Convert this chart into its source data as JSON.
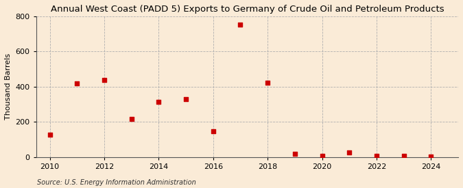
{
  "title": "Annual West Coast (PADD 5) Exports to Germany of Crude Oil and Petroleum Products",
  "ylabel": "Thousand Barrels",
  "source_text": "Source: U.S. Energy Information Administration",
  "background_color": "#faebd7",
  "plot_background_color": "#faebd7",
  "marker_color": "#cc0000",
  "marker": "s",
  "marker_size": 4,
  "years": [
    2010,
    2011,
    2012,
    2013,
    2014,
    2015,
    2016,
    2017,
    2018,
    2019,
    2020,
    2021,
    2022,
    2023,
    2024
  ],
  "values": [
    127,
    420,
    440,
    215,
    315,
    330,
    148,
    752,
    422,
    20,
    5,
    25,
    5,
    8,
    3
  ],
  "xlim": [
    2009.5,
    2025.0
  ],
  "ylim": [
    0,
    800
  ],
  "yticks": [
    0,
    200,
    400,
    600,
    800
  ],
  "xticks": [
    2010,
    2012,
    2014,
    2016,
    2018,
    2020,
    2022,
    2024
  ],
  "grid_color": "#b0b0b0",
  "grid_style": "--",
  "title_fontsize": 9.5,
  "label_fontsize": 8,
  "tick_fontsize": 8,
  "source_fontsize": 7
}
